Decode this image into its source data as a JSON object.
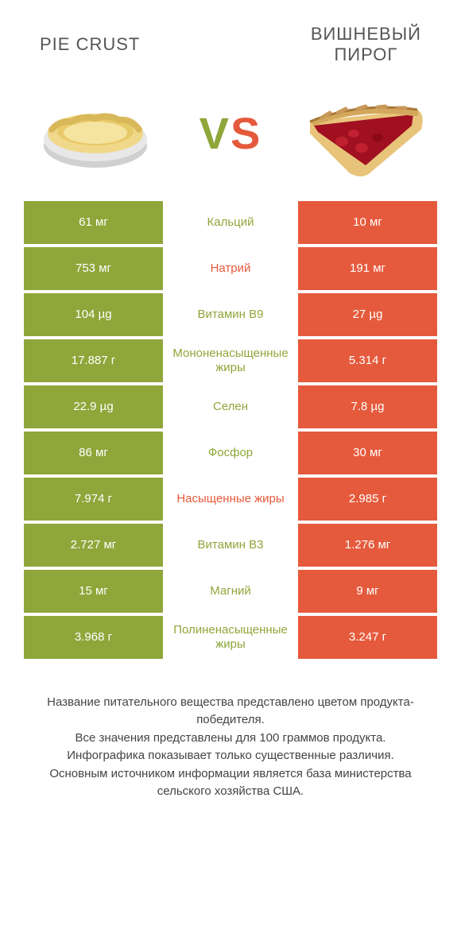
{
  "colors": {
    "green": "#8fa63a",
    "orange": "#e55a3c",
    "bg": "#ffffff",
    "text": "#555555",
    "footer": "#444444"
  },
  "header": {
    "left_title": "PIE CRUST",
    "right_title": "ВИШНЕВЫЙ ПИРОГ",
    "vs_v": "V",
    "vs_s": "S"
  },
  "rows": [
    {
      "left": "61 мг",
      "mid": "Кальций",
      "right": "10 мг",
      "mid_color": "#8fa63a"
    },
    {
      "left": "753 мг",
      "mid": "Натрий",
      "right": "191 мг",
      "mid_color": "#e55a3c"
    },
    {
      "left": "104 µg",
      "mid": "Витамин B9",
      "right": "27 µg",
      "mid_color": "#8fa63a"
    },
    {
      "left": "17.887 г",
      "mid": "Мононенасыщенные жиры",
      "right": "5.314 г",
      "mid_color": "#8fa63a"
    },
    {
      "left": "22.9 µg",
      "mid": "Селен",
      "right": "7.8 µg",
      "mid_color": "#8fa63a"
    },
    {
      "left": "86 мг",
      "mid": "Фосфор",
      "right": "30 мг",
      "mid_color": "#8fa63a"
    },
    {
      "left": "7.974 г",
      "mid": "Насыщенные жиры",
      "right": "2.985 г",
      "mid_color": "#e55a3c"
    },
    {
      "left": "2.727 мг",
      "mid": "Витамин B3",
      "right": "1.276 мг",
      "mid_color": "#8fa63a"
    },
    {
      "left": "15 мг",
      "mid": "Магний",
      "right": "9 мг",
      "mid_color": "#8fa63a"
    },
    {
      "left": "3.968 г",
      "mid": "Полиненасыщенные жиры",
      "right": "3.247 г",
      "mid_color": "#8fa63a"
    }
  ],
  "left_cell_color": "#8fa63a",
  "right_cell_color": "#e55a3c",
  "footer": {
    "line1": "Название питательного вещества представлено цветом продукта-победителя.",
    "line2": "Все значения представлены для 100 граммов продукта.",
    "line3": "Инфографика показывает только существенные различия.",
    "line4": "Основным источником информации является база министерства сельского хозяйства США."
  }
}
